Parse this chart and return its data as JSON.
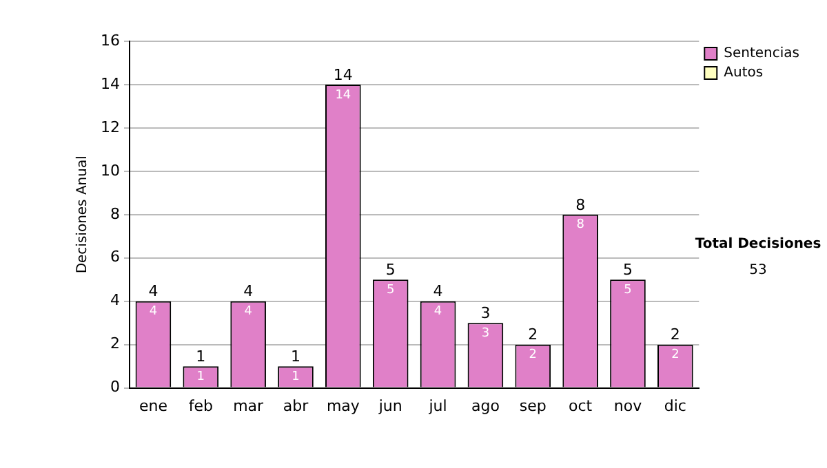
{
  "chart_data": {
    "type": "bar",
    "stacked": true,
    "ylabel": "Decisiones Anual",
    "categories": [
      "ene",
      "feb",
      "mar",
      "abr",
      "may",
      "jun",
      "jul",
      "ago",
      "sep",
      "oct",
      "nov",
      "dic"
    ],
    "series": [
      {
        "name": "Sentencias",
        "color": "#e080c8",
        "values": [
          4,
          1,
          4,
          1,
          14,
          5,
          4,
          3,
          2,
          8,
          5,
          2
        ],
        "value_labels": [
          "4",
          "1",
          "4",
          "1",
          "14",
          "5",
          "4",
          "3",
          "2",
          "8",
          "5",
          "2"
        ]
      },
      {
        "name": "Autos",
        "color": "#ffffc0",
        "values": [
          0,
          0,
          0,
          0,
          0,
          0,
          0,
          0,
          0,
          0,
          0,
          0
        ]
      }
    ],
    "totals": [
      "4",
      "1",
      "4",
      "1",
      "14",
      "5",
      "4",
      "3",
      "2",
      "8",
      "5",
      "2"
    ],
    "ylim": [
      0,
      16
    ],
    "yticks": [
      0,
      2,
      4,
      6,
      8,
      10,
      12,
      14,
      16
    ],
    "grid": "y",
    "legend": "right",
    "annotations": [
      "Total Decisiones",
      "53"
    ]
  }
}
